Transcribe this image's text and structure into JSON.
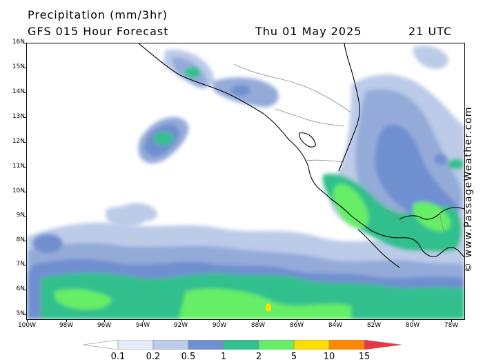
{
  "header": {
    "title": "Precipitation (mm/3hr)",
    "subtitle": "GFS 015 Hour Forecast",
    "date": "Thu 01 May 2025",
    "utc": "21 UTC"
  },
  "axes": {
    "lat_labels": [
      "16N",
      "15N",
      "14N",
      "13N",
      "12N",
      "11N",
      "10N",
      "9N",
      "8N",
      "7N",
      "6N",
      "5N"
    ],
    "lon_labels": [
      "100W",
      "98W",
      "96W",
      "94W",
      "92W",
      "90W",
      "88W",
      "86W",
      "84W",
      "82W",
      "80W",
      "78W"
    ]
  },
  "credit": "© www.PassageWeather.com",
  "colorbar": {
    "labels": [
      "0.1",
      "0.2",
      "0.5",
      "1",
      "2",
      "5",
      "10",
      "15"
    ],
    "colors": [
      "#e6ecf7",
      "#bccbe8",
      "#94abd9",
      "#6f8fd0",
      "#33bf8e",
      "#66ee66",
      "#ffdd00",
      "#ff8800",
      "#ee3344"
    ]
  },
  "palette": {
    "land_border": "#000000",
    "country_border": "#888888",
    "light": "#bccbe8",
    "mid": "#94abd9",
    "blue": "#6f8fd0",
    "teal": "#33bf8e",
    "green": "#66ee66",
    "yellow": "#ffdd00"
  }
}
